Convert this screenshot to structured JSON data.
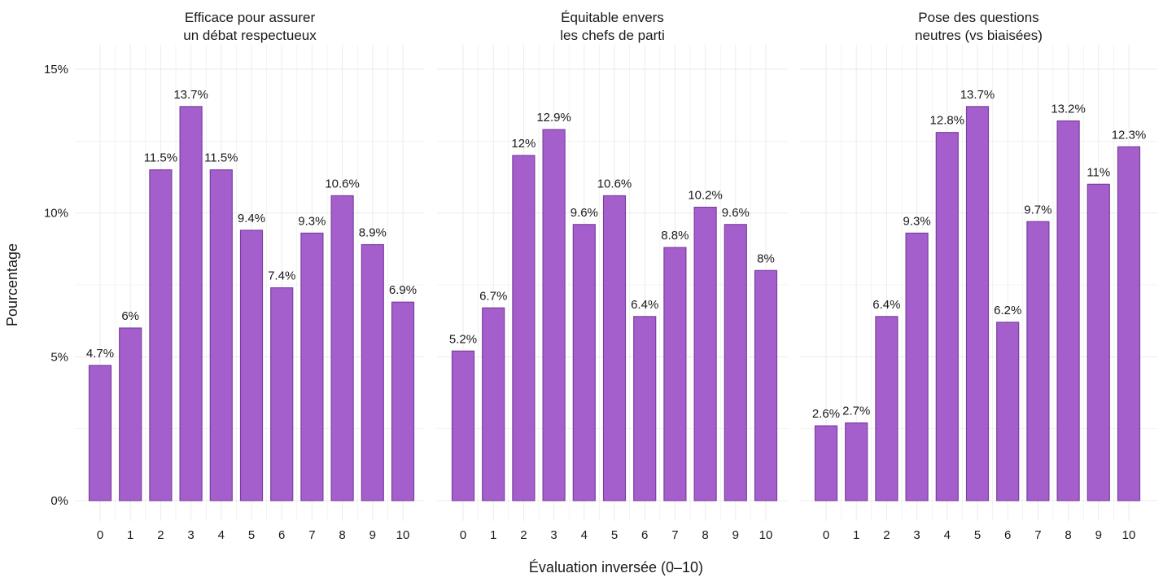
{
  "chart_data": [
    {
      "type": "bar",
      "title": [
        "Efficace pour assurer",
        "un débat respectueux"
      ],
      "categories": [
        "0",
        "1",
        "2",
        "3",
        "4",
        "5",
        "6",
        "7",
        "8",
        "9",
        "10"
      ],
      "values": [
        4.7,
        6.0,
        11.5,
        13.7,
        11.5,
        9.4,
        7.4,
        9.3,
        10.6,
        8.9,
        6.9
      ],
      "labels": [
        "4.7%",
        "6%",
        "11.5%",
        "13.7%",
        "11.5%",
        "9.4%",
        "7.4%",
        "9.3%",
        "10.6%",
        "8.9%",
        "6.9%"
      ]
    },
    {
      "type": "bar",
      "title": [
        "Équitable envers",
        "les chefs de parti"
      ],
      "categories": [
        "0",
        "1",
        "2",
        "3",
        "4",
        "5",
        "6",
        "7",
        "8",
        "9",
        "10"
      ],
      "values": [
        5.2,
        6.7,
        12.0,
        12.9,
        9.6,
        10.6,
        6.4,
        8.8,
        10.2,
        9.6,
        8.0
      ],
      "labels": [
        "5.2%",
        "6.7%",
        "12%",
        "12.9%",
        "9.6%",
        "10.6%",
        "6.4%",
        "8.8%",
        "10.2%",
        "9.6%",
        "8%"
      ]
    },
    {
      "type": "bar",
      "title": [
        "Pose des questions",
        "neutres (vs biaisées)"
      ],
      "categories": [
        "0",
        "1",
        "2",
        "3",
        "4",
        "5",
        "6",
        "7",
        "8",
        "9",
        "10"
      ],
      "values": [
        2.6,
        2.7,
        6.4,
        9.3,
        12.8,
        13.7,
        6.2,
        9.7,
        13.2,
        11.0,
        12.3
      ],
      "labels": [
        "2.6%",
        "2.7%",
        "6.4%",
        "9.3%",
        "12.8%",
        "13.7%",
        "6.2%",
        "9.7%",
        "13.2%",
        "11%",
        "12.3%"
      ]
    }
  ],
  "axes": {
    "xlabel": "Évaluation inversée (0–10)",
    "ylabel": "Pourcentage",
    "ylim": [
      0,
      15
    ],
    "yticks": [
      0,
      5,
      10,
      15
    ],
    "ytick_labels": [
      "0%",
      "5%",
      "10%",
      "15%"
    ],
    "grid": true
  },
  "colors": {
    "bar_fill": "#a55fcc",
    "bar_stroke": "#7b3fa0",
    "grid": "#ebebeb"
  }
}
